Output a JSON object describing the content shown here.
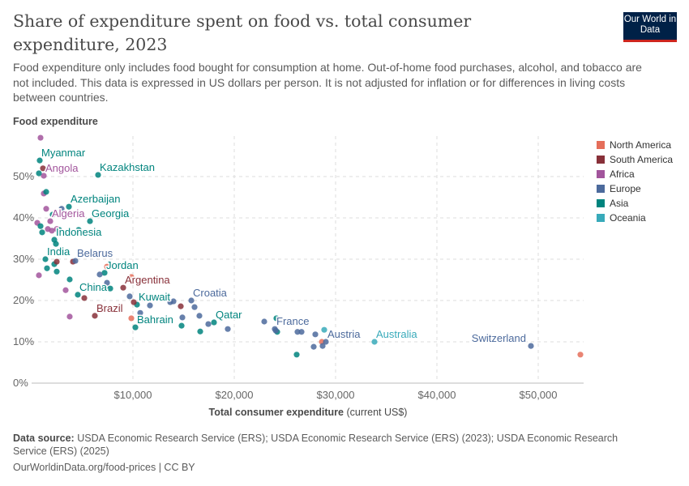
{
  "header": {
    "title": "Share of expenditure spent on food vs. total consumer expenditure, 2023",
    "subtitle": "Food expenditure only includes food bought for consumption at home. Out-of-home food purchases, alcohol, and tobacco are not included. This data is expressed in US dollars per person. It is not adjusted for inflation or for differences in living costs between countries.",
    "logo": "Our World in Data"
  },
  "footer": {
    "source_label": "Data source:",
    "source": "USDA Economic Research Service (ERS); USDA Economic Research Service (ERS) (2023); USDA Economic Research Service (ERS) (2025)",
    "link": "OurWorldinData.org/food-prices | CC BY"
  },
  "chart_data": {
    "type": "scatter",
    "title": "Share of expenditure spent on food vs. total consumer expenditure, 2023",
    "ylabel": "Food expenditure",
    "xlabel": "Total consumer expenditure",
    "xlabel_unit": "(current US$)",
    "xlim": [
      0,
      54500
    ],
    "ylim": [
      0,
      60
    ],
    "xticks": [
      10000,
      20000,
      30000,
      40000,
      50000
    ],
    "xtick_labels": [
      "$10,000",
      "$20,000",
      "$30,000",
      "$40,000",
      "$50,000"
    ],
    "yticks": [
      0,
      10,
      20,
      30,
      40,
      50
    ],
    "ytick_labels": [
      "0%",
      "10%",
      "20%",
      "30%",
      "40%",
      "50%"
    ],
    "grid": true,
    "legend_placement": "right",
    "legend": [
      {
        "name": "North America",
        "color": "#E56E5A"
      },
      {
        "name": "South America",
        "color": "#883039"
      },
      {
        "name": "Africa",
        "color": "#A2559C"
      },
      {
        "name": "Europe",
        "color": "#4C6A9C"
      },
      {
        "name": "Asia",
        "color": "#00847E"
      },
      {
        "name": "Oceania",
        "color": "#38AABA"
      }
    ],
    "points": [
      {
        "r": "Africa",
        "x": 880,
        "y": 59.4
      },
      {
        "r": "Africa",
        "x": 1200,
        "y": 50.2,
        "label": "Angola"
      },
      {
        "r": "Africa",
        "x": 1200,
        "y": 45.9
      },
      {
        "r": "Africa",
        "x": 1440,
        "y": 42.2
      },
      {
        "r": "Africa",
        "x": 560,
        "y": 38.8
      },
      {
        "r": "Africa",
        "x": 1840,
        "y": 39.2,
        "label": "Algeria"
      },
      {
        "r": "Africa",
        "x": 1600,
        "y": 37.3
      },
      {
        "r": "Africa",
        "x": 2000,
        "y": 36.9
      },
      {
        "r": "Africa",
        "x": 2480,
        "y": 37.3
      },
      {
        "r": "Africa",
        "x": 720,
        "y": 26.1
      },
      {
        "r": "Africa",
        "x": 3360,
        "y": 22.5
      },
      {
        "r": "Africa",
        "x": 3760,
        "y": 16.1
      },
      {
        "r": "Asia",
        "x": 800,
        "y": 53.9,
        "label": "Myanmar"
      },
      {
        "r": "Asia",
        "x": 720,
        "y": 50.8
      },
      {
        "r": "Asia",
        "x": 1440,
        "y": 46.3
      },
      {
        "r": "Asia",
        "x": 3680,
        "y": 42.7,
        "label": "Azerbaijan"
      },
      {
        "r": "Asia",
        "x": 2080,
        "y": 40.8
      },
      {
        "r": "Asia",
        "x": 5760,
        "y": 39.2,
        "label": "Georgia"
      },
      {
        "r": "Asia",
        "x": 880,
        "y": 38.0
      },
      {
        "r": "Asia",
        "x": 1040,
        "y": 36.5
      },
      {
        "r": "Asia",
        "x": 2240,
        "y": 34.7,
        "label": "Indonesia"
      },
      {
        "r": "Asia",
        "x": 2720,
        "y": 37.1
      },
      {
        "r": "Asia",
        "x": 4640,
        "y": 37.1
      },
      {
        "r": "Asia",
        "x": 2400,
        "y": 33.7
      },
      {
        "r": "Asia",
        "x": 6560,
        "y": 50.4,
        "label": "Kazakhstan"
      },
      {
        "r": "Asia",
        "x": 1360,
        "y": 30.0,
        "label": "India"
      },
      {
        "r": "Asia",
        "x": 1520,
        "y": 27.8
      },
      {
        "r": "Asia",
        "x": 2240,
        "y": 28.8
      },
      {
        "r": "Asia",
        "x": 2480,
        "y": 27.0
      },
      {
        "r": "Asia",
        "x": 3760,
        "y": 25.1
      },
      {
        "r": "Asia",
        "x": 4560,
        "y": 21.4,
        "label": "China"
      },
      {
        "r": "Asia",
        "x": 7200,
        "y": 26.7,
        "label": "Jordan"
      },
      {
        "r": "Asia",
        "x": 7760,
        "y": 22.9
      },
      {
        "r": "Asia",
        "x": 10400,
        "y": 19.0,
        "label": "Kuwait"
      },
      {
        "r": "Asia",
        "x": 10240,
        "y": 13.5,
        "label": "Bahrain"
      },
      {
        "r": "Asia",
        "x": 14800,
        "y": 13.9
      },
      {
        "r": "Asia",
        "x": 16640,
        "y": 12.5
      },
      {
        "r": "Asia",
        "x": 18000,
        "y": 14.7,
        "label": "Qatar"
      },
      {
        "r": "Asia",
        "x": 24160,
        "y": 15.7
      },
      {
        "r": "Asia",
        "x": 24240,
        "y": 12.4
      },
      {
        "r": "Asia",
        "x": 26160,
        "y": 6.9
      },
      {
        "r": "South America",
        "x": 1120,
        "y": 52.0
      },
      {
        "r": "South America",
        "x": 2480,
        "y": 29.4
      },
      {
        "r": "South America",
        "x": 4080,
        "y": 29.4
      },
      {
        "r": "South America",
        "x": 5200,
        "y": 20.6
      },
      {
        "r": "South America",
        "x": 6240,
        "y": 16.3,
        "label": "Brazil"
      },
      {
        "r": "South America",
        "x": 9040,
        "y": 23.1,
        "label": "Argentina"
      },
      {
        "r": "South America",
        "x": 10080,
        "y": 19.6
      },
      {
        "r": "South America",
        "x": 14720,
        "y": 18.6
      },
      {
        "r": "North America",
        "x": 7440,
        "y": 28.2
      },
      {
        "r": "North America",
        "x": 9840,
        "y": 25.7
      },
      {
        "r": "North America",
        "x": 9840,
        "y": 15.7
      },
      {
        "r": "North America",
        "x": 28640,
        "y": 10.0
      },
      {
        "r": "North America",
        "x": 54160,
        "y": 6.9
      },
      {
        "r": "Europe",
        "x": 4320,
        "y": 29.6,
        "label": "Belarus"
      },
      {
        "r": "Europe",
        "x": 2960,
        "y": 42.2
      },
      {
        "r": "Europe",
        "x": 6720,
        "y": 26.3
      },
      {
        "r": "Europe",
        "x": 7440,
        "y": 24.3
      },
      {
        "r": "Europe",
        "x": 9680,
        "y": 21.0
      },
      {
        "r": "Europe",
        "x": 10720,
        "y": 17.0
      },
      {
        "r": "Europe",
        "x": 11680,
        "y": 18.8
      },
      {
        "r": "Europe",
        "x": 13680,
        "y": 19.6
      },
      {
        "r": "Europe",
        "x": 14000,
        "y": 19.8
      },
      {
        "r": "Europe",
        "x": 15760,
        "y": 20.0,
        "label": "Croatia"
      },
      {
        "r": "Europe",
        "x": 16080,
        "y": 18.4
      },
      {
        "r": "Europe",
        "x": 14880,
        "y": 15.9
      },
      {
        "r": "Europe",
        "x": 16560,
        "y": 16.3
      },
      {
        "r": "Europe",
        "x": 17440,
        "y": 14.3
      },
      {
        "r": "Europe",
        "x": 19360,
        "y": 13.1
      },
      {
        "r": "Europe",
        "x": 22960,
        "y": 14.9
      },
      {
        "r": "Europe",
        "x": 24000,
        "y": 13.1,
        "label": "France"
      },
      {
        "r": "Europe",
        "x": 24100,
        "y": 12.7
      },
      {
        "r": "Europe",
        "x": 26240,
        "y": 12.4
      },
      {
        "r": "Europe",
        "x": 26640,
        "y": 12.4
      },
      {
        "r": "Europe",
        "x": 28000,
        "y": 11.8
      },
      {
        "r": "Europe",
        "x": 27840,
        "y": 8.8
      },
      {
        "r": "Europe",
        "x": 28720,
        "y": 9.0
      },
      {
        "r": "Europe",
        "x": 29040,
        "y": 10.0,
        "label": "Austria"
      },
      {
        "r": "Europe",
        "x": 49280,
        "y": 9.0,
        "label": "Switzerland"
      },
      {
        "r": "Oceania",
        "x": 28880,
        "y": 12.9
      },
      {
        "r": "Oceania",
        "x": 33840,
        "y": 10.0,
        "label": "Australia"
      }
    ]
  }
}
